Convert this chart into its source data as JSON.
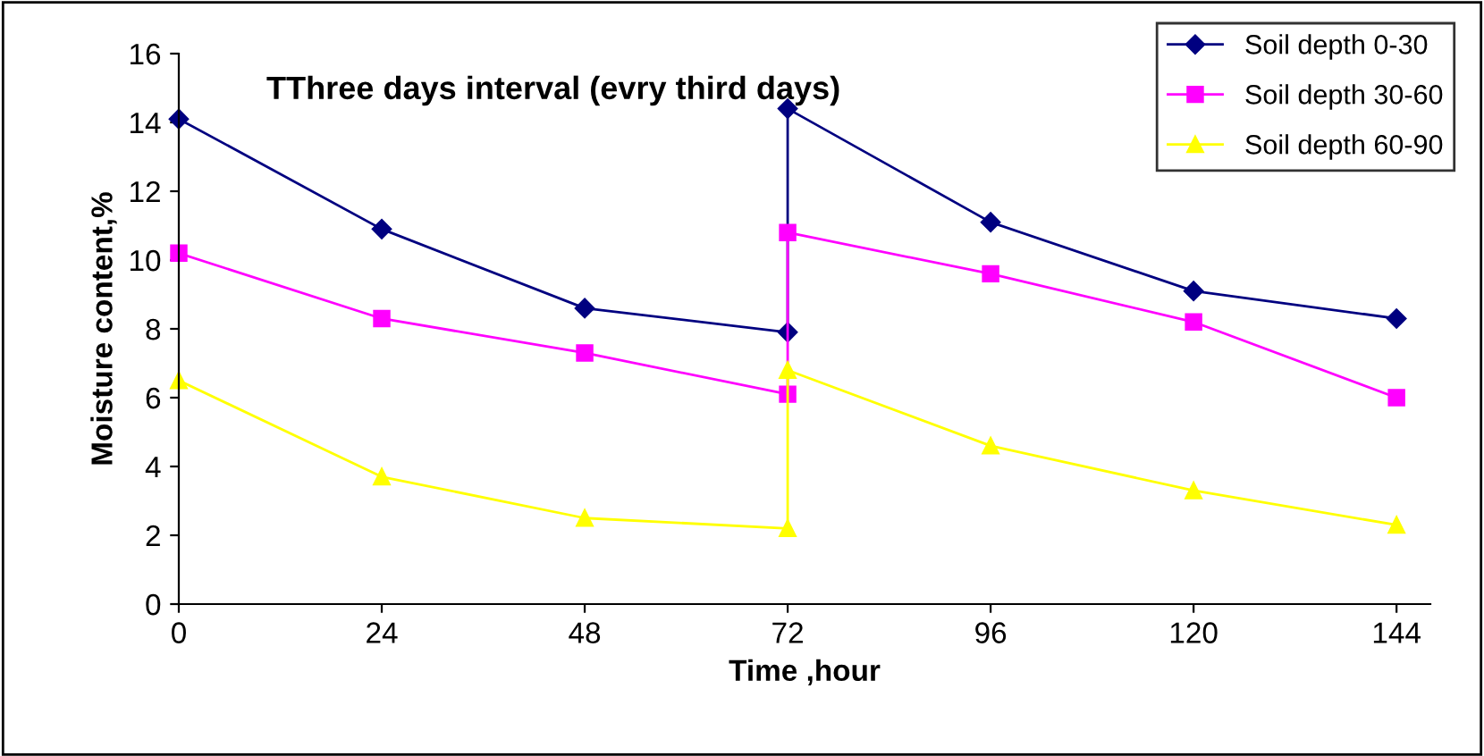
{
  "chart_data": {
    "type": "line",
    "title": "TThree days interval (evry third days)",
    "xlabel": "Time ,hour",
    "ylabel": "Moisture content,%",
    "xlim": [
      0,
      148
    ],
    "xticks": [
      0,
      24,
      48,
      72,
      96,
      120,
      144
    ],
    "ylim": [
      0,
      16
    ],
    "yticks": [
      0,
      2,
      4,
      6,
      8,
      10,
      12,
      14,
      16
    ],
    "grid": false,
    "legend": "top right",
    "line_style": "solid",
    "series": [
      {
        "name": "Soil depth 0-30",
        "color": "#000080",
        "marker": "diamond",
        "x": [
          0,
          24,
          48,
          72,
          72,
          96,
          120,
          144
        ],
        "values": [
          14.1,
          10.9,
          8.6,
          7.9,
          14.4,
          11.1,
          9.1,
          8.3
        ]
      },
      {
        "name": "Soil depth 30-60",
        "color": "#ff00ff",
        "marker": "square",
        "x": [
          0,
          24,
          48,
          72,
          72,
          96,
          120,
          144
        ],
        "values": [
          10.2,
          8.3,
          7.3,
          6.1,
          10.8,
          9.6,
          8.2,
          6.0
        ]
      },
      {
        "name": "Soil depth 60-90",
        "color": "#ffff00",
        "marker": "triangle",
        "x": [
          0,
          24,
          48,
          72,
          72,
          96,
          120,
          144
        ],
        "values": [
          6.5,
          3.7,
          2.5,
          2.2,
          6.8,
          4.6,
          3.3,
          2.3
        ]
      }
    ]
  }
}
